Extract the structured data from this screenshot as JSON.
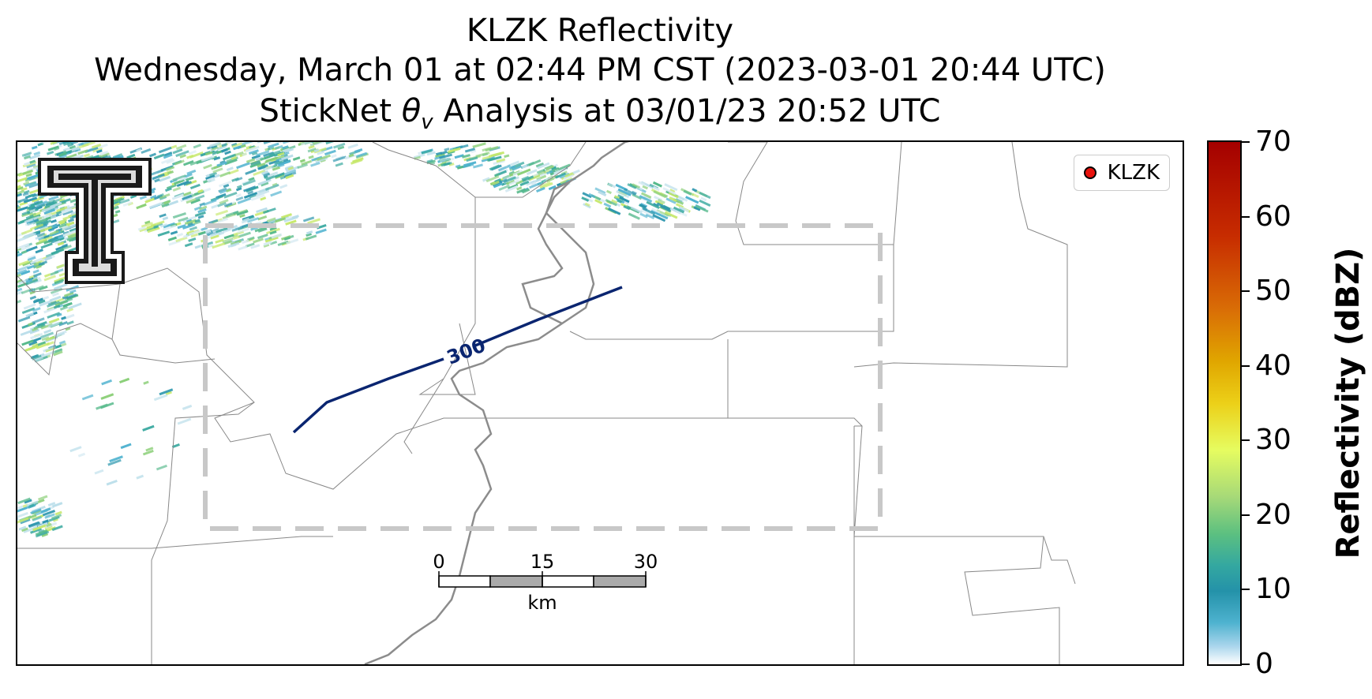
{
  "title": {
    "line1": "KLZK Reflectivity",
    "line2": "Wednesday, March 01 at 02:44 PM CST (2023-03-01 20:44 UTC)",
    "line3_prefix": "StickNet ",
    "line3_symbol": "θ",
    "line3_subscript": "v",
    "line3_suffix": " Analysis at 03/01/23 20:52 UTC"
  },
  "legend": {
    "label": "KLZK",
    "marker_color": "#e8120d"
  },
  "contour": {
    "label": "300",
    "color": "#0a2570"
  },
  "scale_bar": {
    "ticks": [
      "0",
      "15",
      "30"
    ],
    "unit": "km"
  },
  "colorbar": {
    "title": "Reflectivity (dBZ)",
    "ticks": [
      "0",
      "10",
      "20",
      "30",
      "40",
      "50",
      "60",
      "70"
    ],
    "range": [
      0,
      70
    ]
  },
  "logo": {
    "name": "texas-tech-double-t-logo"
  }
}
